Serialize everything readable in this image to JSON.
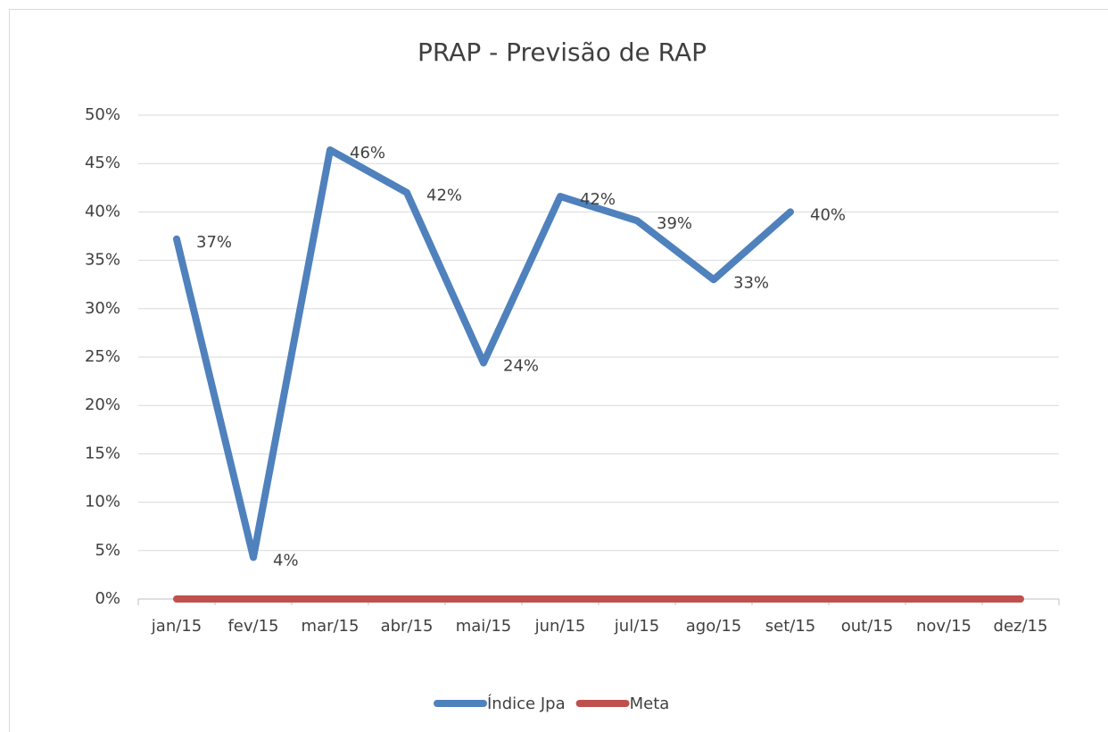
{
  "chart_data": {
    "type": "line",
    "title": "PRAP - Previsão de RAP",
    "categories": [
      "jan/15",
      "fev/15",
      "mar/15",
      "abr/15",
      "mai/15",
      "jun/15",
      "jul/15",
      "ago/15",
      "set/15",
      "out/15",
      "nov/15",
      "dez/15"
    ],
    "series": [
      {
        "name": "Índice Jpa",
        "color": "#4f81bd",
        "values": [
          37.2,
          4.3,
          46.4,
          42.0,
          24.4,
          41.6,
          39.1,
          33.0,
          40.0,
          null,
          null,
          null
        ],
        "value_labels": [
          "37%",
          "4%",
          "46%",
          "42%",
          "24%",
          "42%",
          "39%",
          "33%",
          "40%",
          null,
          null,
          null
        ]
      },
      {
        "name": "Meta",
        "color": "#c0504d",
        "values": [
          0,
          0,
          0,
          0,
          0,
          0,
          0,
          0,
          0,
          0,
          0,
          0
        ]
      }
    ],
    "ylim": [
      0,
      50
    ],
    "yticks": [
      {
        "value": 0,
        "label": "0%"
      },
      {
        "value": 5,
        "label": "5%"
      },
      {
        "value": 10,
        "label": "10%"
      },
      {
        "value": 15,
        "label": "15%"
      },
      {
        "value": 20,
        "label": "20%"
      },
      {
        "value": 25,
        "label": "25%"
      },
      {
        "value": 30,
        "label": "30%"
      },
      {
        "value": 35,
        "label": "35%"
      },
      {
        "value": 40,
        "label": "40%"
      },
      {
        "value": 45,
        "label": "45%"
      },
      {
        "value": 50,
        "label": "50%"
      }
    ],
    "grid": true,
    "legend": "bottom"
  }
}
